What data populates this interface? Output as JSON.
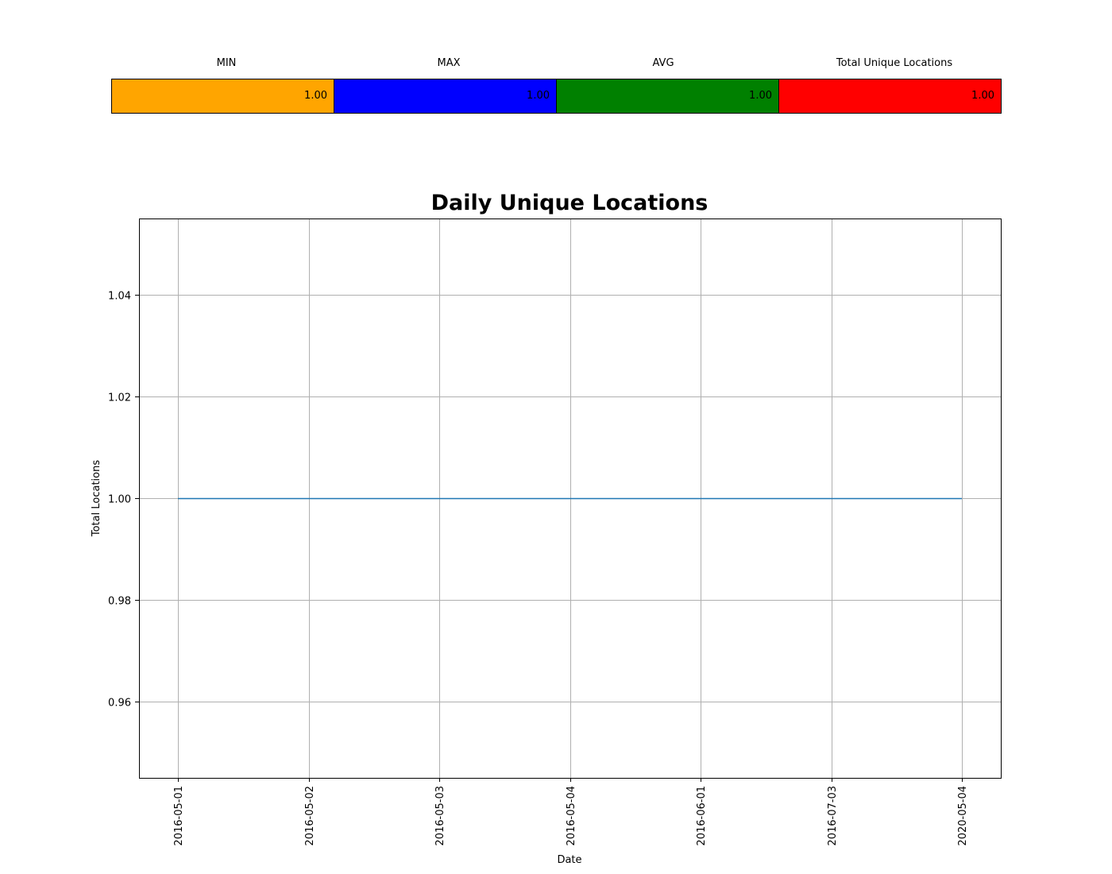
{
  "summary": {
    "headers": [
      "MIN",
      "MAX",
      "AVG",
      "Total Unique Locations"
    ],
    "values": [
      "1.00",
      "1.00",
      "1.00",
      "1.00"
    ],
    "colors": [
      "#ffa500",
      "#0000ff",
      "#008000",
      "#ff0000"
    ]
  },
  "chart_data": {
    "type": "line",
    "title": "Daily Unique Locations",
    "xlabel": "Date",
    "ylabel": "Total Locations",
    "categories": [
      "2016-05-01",
      "2016-05-02",
      "2016-05-03",
      "2016-05-04",
      "2016-06-01",
      "2016-07-03",
      "2020-05-04"
    ],
    "series": [
      {
        "values": [
          1,
          1,
          1,
          1,
          1,
          1,
          1
        ],
        "color": "#1f77b4"
      }
    ],
    "yticks": [
      "0.96",
      "0.98",
      "1.00",
      "1.02",
      "1.04"
    ],
    "ylim": [
      0.945,
      1.055
    ],
    "grid": true
  }
}
